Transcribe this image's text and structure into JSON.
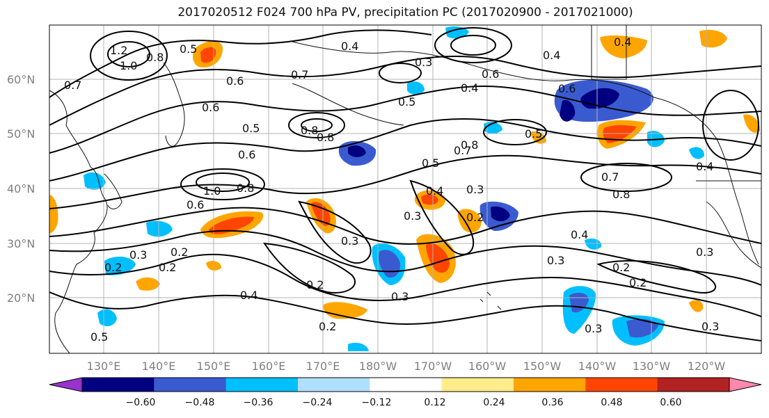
{
  "title": "2017020512 F024 700 hPa PV, precipitation PC (2017020900 - 2017021000)",
  "lat_labels": [
    "60°N",
    "50°N",
    "40°N",
    "30°N",
    "20°N"
  ],
  "lon_labels": [
    "130°E",
    "140°E",
    "150°E",
    "160°E",
    "170°E",
    "180°W",
    "170°W",
    "160°W",
    "150°W",
    "140°W",
    "130°W",
    "120°W"
  ],
  "colorbar": {
    "colors": [
      "#9933cc",
      "#000080",
      "#3a5bd0",
      "#00bfff",
      "#b0e0ff",
      "#ffffff",
      "#ffec8b",
      "#ffa500",
      "#ff4500",
      "#b22222",
      "#ff88b0"
    ],
    "tick_labels": [
      "−0.60",
      "−0.48",
      "−0.36",
      "−0.24",
      "−0.12",
      "0.12",
      "0.24",
      "0.36",
      "0.48",
      "0.60"
    ]
  },
  "contour_labels": [
    "1.2",
    "1.0",
    "0.8",
    "0.7",
    "0.6",
    "0.5",
    "0.4",
    "0.3",
    "0.2",
    "0.4",
    "0.5",
    "0.6",
    "0.8",
    "0.7",
    "0.3",
    "0.5",
    "0.6",
    "0.8",
    "0.5",
    "0.4",
    "0.6",
    "0.7",
    "0.8",
    "0.5",
    "0.3",
    "0.3",
    "0.2",
    "0.2",
    "0.4",
    "0.2",
    "0.2",
    "0.3",
    "0.4",
    "0.3",
    "0.2",
    "0.7",
    "0.8",
    "0.3",
    "0.5",
    "0.2",
    "0.3",
    "0.4",
    "0.6",
    "0.4",
    "1.0",
    "0.8",
    "0.6",
    "0.3",
    "0.4",
    "0.3",
    "0.2"
  ]
}
